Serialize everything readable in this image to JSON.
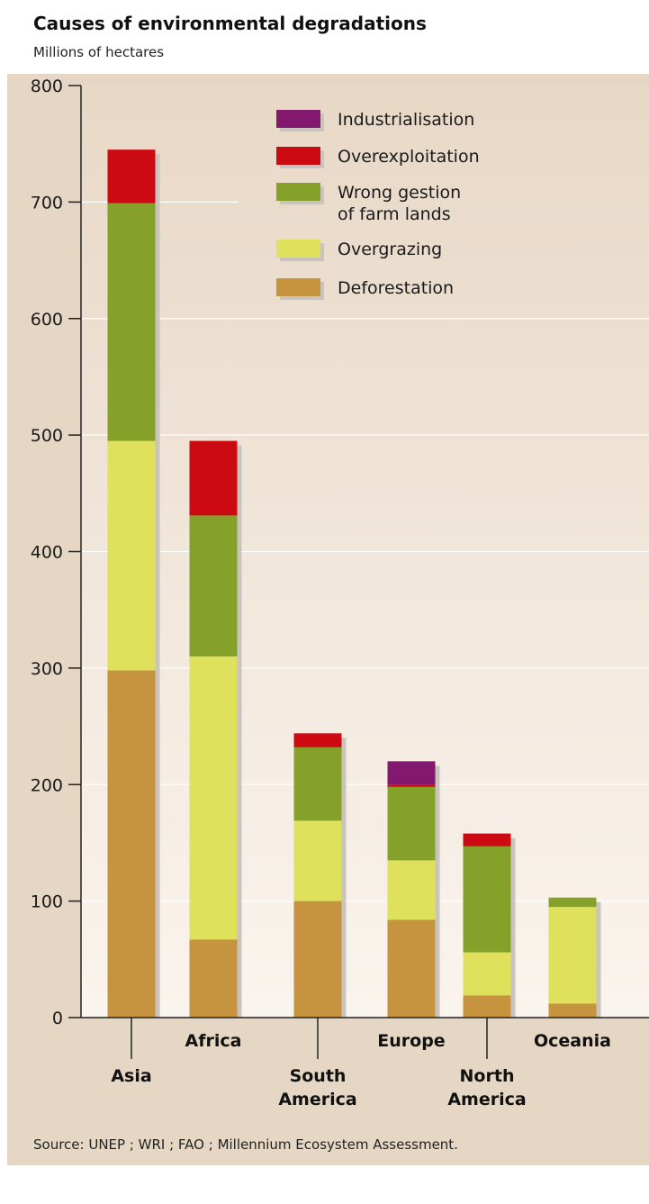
{
  "header": {
    "title": "Causes of environmental degradations",
    "subtitle": "Millions of hectares"
  },
  "footer": {
    "source": "Source: UNEP ; WRI ; FAO ; Millennium Ecosystem Assessment."
  },
  "colors": {
    "panel_top": "#e8d8c6",
    "panel_bottom": "#faf4ee",
    "frame": "#e6d7c5",
    "Industrialisation": "#82196e",
    "Overexploitation": "#cc0a12",
    "Wrong gestion of farm lands": "#86a12a",
    "Overgrazing": "#dfe05c",
    "Deforestation": "#c6933e",
    "shadow": "#c9c4bd"
  },
  "chart_data": {
    "type": "bar",
    "stacked": true,
    "title": "Causes of environmental degradations",
    "ylabel": "Millions of hectares",
    "ylim": [
      0,
      800
    ],
    "yticks": [
      0,
      100,
      200,
      300,
      400,
      500,
      600,
      700,
      800
    ],
    "grid": true,
    "legend_position": "top-right",
    "categories": [
      "Asia",
      "Africa",
      "South America",
      "Europe",
      "North America",
      "Oceania"
    ],
    "category_labels": [
      [
        "Asia"
      ],
      [
        "Africa"
      ],
      [
        "South",
        "America"
      ],
      [
        "Europe"
      ],
      [
        "North",
        "America"
      ],
      [
        "Oceania"
      ]
    ],
    "label_rows": [
      "low",
      "high",
      "low",
      "high",
      "low",
      "high"
    ],
    "series": [
      {
        "name": "Deforestation",
        "values": [
          298,
          67,
          100,
          84,
          19,
          12
        ]
      },
      {
        "name": "Overgrazing",
        "values": [
          197,
          243,
          69,
          51,
          37,
          83
        ]
      },
      {
        "name": "Wrong gestion of farm lands",
        "values": [
          204,
          121,
          63,
          63,
          91,
          8
        ]
      },
      {
        "name": "Overexploitation",
        "values": [
          46,
          64,
          12,
          2,
          11,
          0
        ]
      },
      {
        "name": "Industrialisation",
        "values": [
          0,
          0,
          0,
          20,
          0,
          0
        ]
      }
    ],
    "legend": [
      {
        "series": "Industrialisation",
        "lines": [
          "Industrialisation"
        ]
      },
      {
        "series": "Overexploitation",
        "lines": [
          "Overexploitation"
        ]
      },
      {
        "series": "Wrong gestion of farm lands",
        "lines": [
          "Wrong gestion",
          "of farm lands"
        ]
      },
      {
        "series": "Overgrazing",
        "lines": [
          "Overgrazing"
        ]
      },
      {
        "series": "Deforestation",
        "lines": [
          "Deforestation"
        ]
      }
    ]
  }
}
